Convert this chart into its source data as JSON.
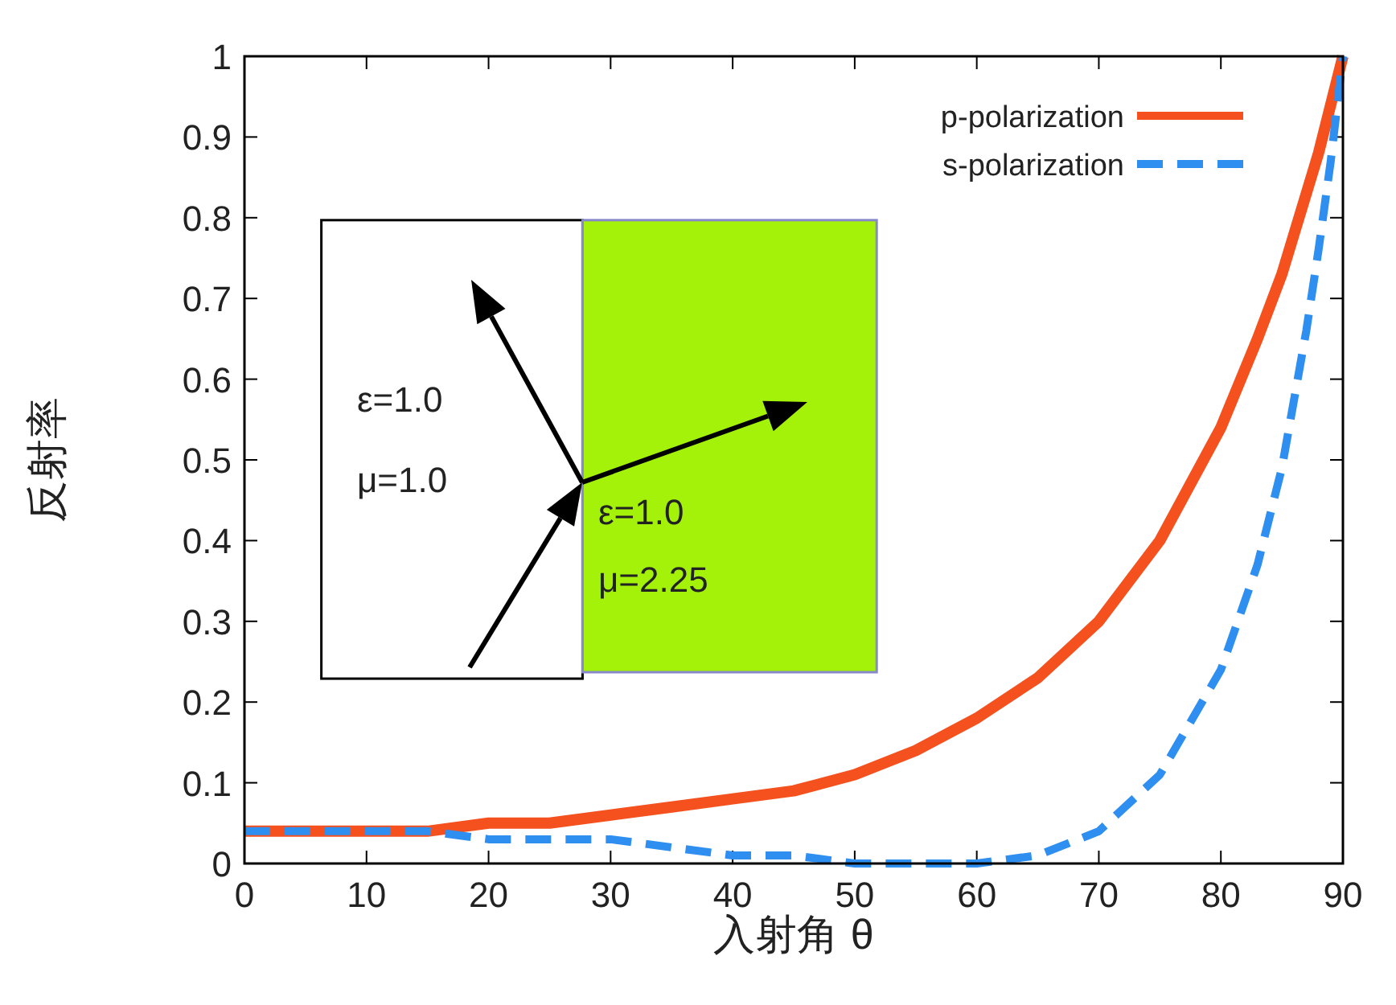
{
  "chart_data": {
    "type": "line",
    "xlabel": "入射角 θ",
    "ylabel": "反射率",
    "x": [
      0,
      5,
      10,
      15,
      20,
      25,
      30,
      35,
      40,
      45,
      50,
      55,
      60,
      65,
      70,
      75,
      80,
      83,
      85,
      87,
      88,
      89,
      90
    ],
    "series": [
      {
        "name": "p-polarization",
        "color": "#f4511e",
        "line_style": "solid",
        "values": [
          0.04,
          0.04,
          0.04,
          0.04,
          0.05,
          0.05,
          0.06,
          0.07,
          0.08,
          0.09,
          0.11,
          0.14,
          0.18,
          0.23,
          0.3,
          0.4,
          0.54,
          0.65,
          0.73,
          0.83,
          0.88,
          0.94,
          1
        ]
      },
      {
        "name": "s-polarization",
        "color": "#2f8ff0",
        "line_style": "dashed",
        "values": [
          0.04,
          0.04,
          0.04,
          0.04,
          0.03,
          0.03,
          0.03,
          0.02,
          0.01,
          0.01,
          0,
          0,
          0,
          0.01,
          0.04,
          0.11,
          0.24,
          0.37,
          0.49,
          0.66,
          0.76,
          0.87,
          1
        ]
      }
    ],
    "xlim": [
      0,
      90
    ],
    "ylim": [
      0,
      1
    ],
    "xticks": [
      0,
      10,
      20,
      30,
      40,
      50,
      60,
      70,
      80,
      90
    ],
    "yticks": [
      0,
      0.1,
      0.2,
      0.3,
      0.4,
      0.5,
      0.6,
      0.7,
      0.8,
      0.9,
      1
    ],
    "legend": "top right",
    "annotations": [
      "ε=1.0",
      "μ=1.0",
      "ε=1.0",
      "μ=2.25"
    ]
  }
}
